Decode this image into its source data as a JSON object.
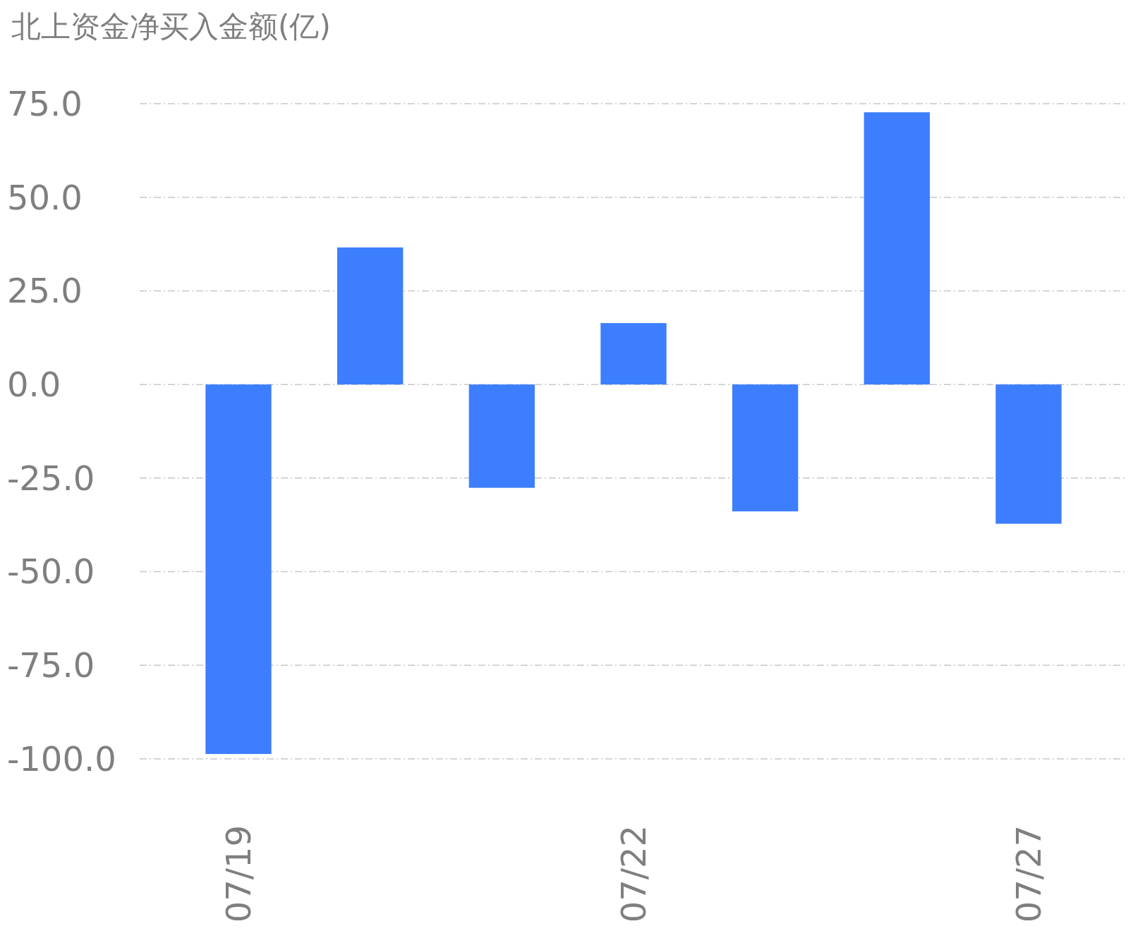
{
  "chart_data": {
    "type": "bar",
    "title": "北上资金净买入金额(亿)",
    "categories": [
      "07/19",
      null,
      null,
      "07/22",
      null,
      null,
      "07/27"
    ],
    "values": [
      -98.7,
      36.6,
      -27.6,
      16.4,
      -33.9,
      72.7,
      -37.2
    ],
    "color": "#3d7eff",
    "ylim": [
      -100,
      75
    ],
    "yticks": [
      {
        "value": 75,
        "label": "75.0"
      },
      {
        "value": 50,
        "label": "50.0"
      },
      {
        "value": 25,
        "label": "25.0"
      },
      {
        "value": 0,
        "label": "0.0"
      },
      {
        "value": -25,
        "label": "-25.0"
      },
      {
        "value": -50,
        "label": "-50.0"
      },
      {
        "value": -75,
        "label": "-75.0"
      },
      {
        "value": -100,
        "label": "-100.0"
      }
    ],
    "grid": "y"
  }
}
